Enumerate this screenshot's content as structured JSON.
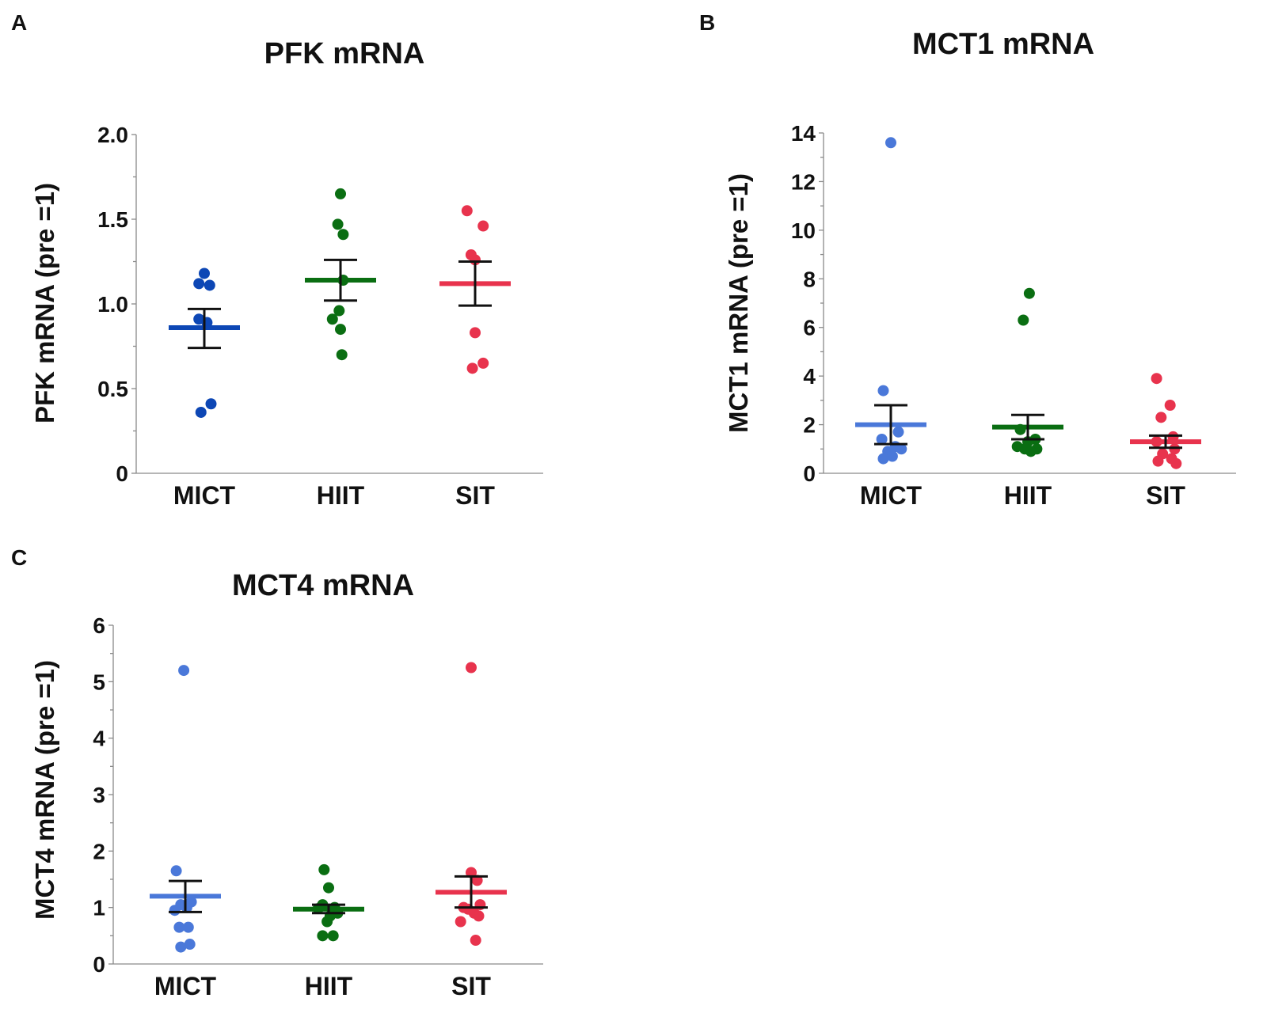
{
  "chart_data": [
    {
      "panel": "A",
      "type": "scatter",
      "title": "PFK mRNA",
      "ylabel": "PFK mRNA (pre =1)",
      "xlabel": "",
      "categories": [
        "MICT",
        "HIIT",
        "SIT"
      ],
      "ylim": [
        0,
        2.0
      ],
      "yticks": [
        0,
        0.5,
        1.0,
        1.5,
        2.0
      ],
      "ytick_labels": [
        "0",
        "0.5",
        "1.0",
        "1.5",
        "2.0"
      ],
      "colors": [
        "#0d47b5",
        "#0a6e12",
        "#e8334d"
      ],
      "series": [
        {
          "name": "MICT",
          "values": [
            1.18,
            1.12,
            1.11,
            0.91,
            0.89,
            0.41,
            0.36
          ],
          "offsets": [
            0,
            -0.4,
            0.4,
            -0.4,
            0.2,
            0.5,
            -0.25
          ],
          "mean": 0.86,
          "sem": [
            0.74,
            0.97
          ]
        },
        {
          "name": "HIIT",
          "values": [
            1.65,
            1.47,
            1.41,
            1.14,
            0.96,
            0.91,
            0.85,
            0.7
          ],
          "offsets": [
            0,
            -0.2,
            0.2,
            0.2,
            -0.1,
            -0.6,
            0,
            0.1
          ],
          "mean": 1.14,
          "sem": [
            1.02,
            1.26
          ]
        },
        {
          "name": "SIT",
          "values": [
            1.55,
            1.46,
            1.29,
            1.26,
            0.83,
            0.65,
            0.62
          ],
          "offsets": [
            -0.6,
            0.6,
            -0.3,
            0,
            0,
            0.6,
            -0.2
          ],
          "mean": 1.12,
          "sem": [
            0.99,
            1.25
          ]
        }
      ]
    },
    {
      "panel": "B",
      "type": "scatter",
      "title": "MCT1 mRNA",
      "ylabel": "MCT1 mRNA (pre =1)",
      "xlabel": "",
      "categories": [
        "MICT",
        "HIIT",
        "SIT"
      ],
      "ylim": [
        0,
        14
      ],
      "yticks": [
        0,
        2,
        4,
        6,
        8,
        10,
        12,
        14
      ],
      "ytick_labels": [
        "0",
        "2",
        "4",
        "6",
        "8",
        "10",
        "12",
        "14"
      ],
      "colors": [
        "#4a78d9",
        "#0a6e12",
        "#e8334d"
      ],
      "series": [
        {
          "name": "MICT",
          "values": [
            13.6,
            3.4,
            1.7,
            1.4,
            1.1,
            1.0,
            0.9,
            0.7,
            0.6
          ],
          "offsets": [
            0,
            -0.5,
            0.5,
            -0.6,
            0.3,
            0.7,
            -0.2,
            0.1,
            -0.5
          ],
          "mean": 2.0,
          "sem": [
            1.2,
            2.8
          ]
        },
        {
          "name": "HIIT",
          "values": [
            7.4,
            6.3,
            1.8,
            1.4,
            1.3,
            1.1,
            1.0,
            1.0,
            0.9
          ],
          "offsets": [
            0.1,
            -0.3,
            -0.5,
            0.5,
            0,
            -0.7,
            0.6,
            -0.2,
            0.2
          ],
          "mean": 1.9,
          "sem": [
            1.4,
            2.4
          ]
        },
        {
          "name": "SIT",
          "values": [
            3.9,
            2.8,
            2.3,
            1.5,
            1.3,
            1.0,
            0.8,
            0.6,
            0.5,
            0.4
          ],
          "offsets": [
            -0.6,
            0.3,
            -0.3,
            0.5,
            -0.6,
            0.6,
            -0.2,
            0.4,
            -0.5,
            0.7
          ],
          "mean": 1.3,
          "sem": [
            1.05,
            1.55
          ]
        }
      ]
    },
    {
      "panel": "C",
      "type": "scatter",
      "title": "MCT4 mRNA",
      "ylabel": "MCT4 mRNA (pre =1)",
      "xlabel": "",
      "categories": [
        "MICT",
        "HIIT",
        "SIT"
      ],
      "ylim": [
        0,
        6
      ],
      "yticks": [
        0,
        1,
        2,
        3,
        4,
        5,
        6
      ],
      "ytick_labels": [
        "0",
        "1",
        "2",
        "3",
        "4",
        "5",
        "6"
      ],
      "colors": [
        "#4a78d9",
        "#0a6e12",
        "#e8334d"
      ],
      "series": [
        {
          "name": "MICT",
          "values": [
            5.2,
            1.65,
            1.1,
            1.05,
            1.0,
            0.95,
            0.65,
            0.65,
            0.35,
            0.3
          ],
          "offsets": [
            -0.1,
            -0.6,
            0.4,
            -0.3,
            0.1,
            -0.7,
            -0.4,
            0.2,
            0.3,
            -0.3
          ],
          "mean": 1.2,
          "sem": [
            0.92,
            1.47
          ]
        },
        {
          "name": "HIIT",
          "values": [
            1.67,
            1.35,
            1.05,
            1.0,
            0.98,
            0.9,
            0.85,
            0.75,
            0.5,
            0.5
          ],
          "offsets": [
            -0.3,
            0,
            -0.4,
            0.4,
            -0.7,
            0.6,
            0.1,
            -0.1,
            -0.4,
            0.3
          ],
          "mean": 0.97,
          "sem": [
            0.9,
            1.05
          ]
        },
        {
          "name": "SIT",
          "values": [
            5.25,
            1.62,
            1.48,
            1.05,
            1.0,
            0.97,
            0.9,
            0.85,
            0.75,
            0.42
          ],
          "offsets": [
            0,
            0,
            0.4,
            0.6,
            -0.5,
            -0.2,
            0.2,
            0.5,
            -0.7,
            0.3
          ],
          "mean": 1.27,
          "sem": [
            1.0,
            1.55
          ]
        }
      ]
    }
  ]
}
